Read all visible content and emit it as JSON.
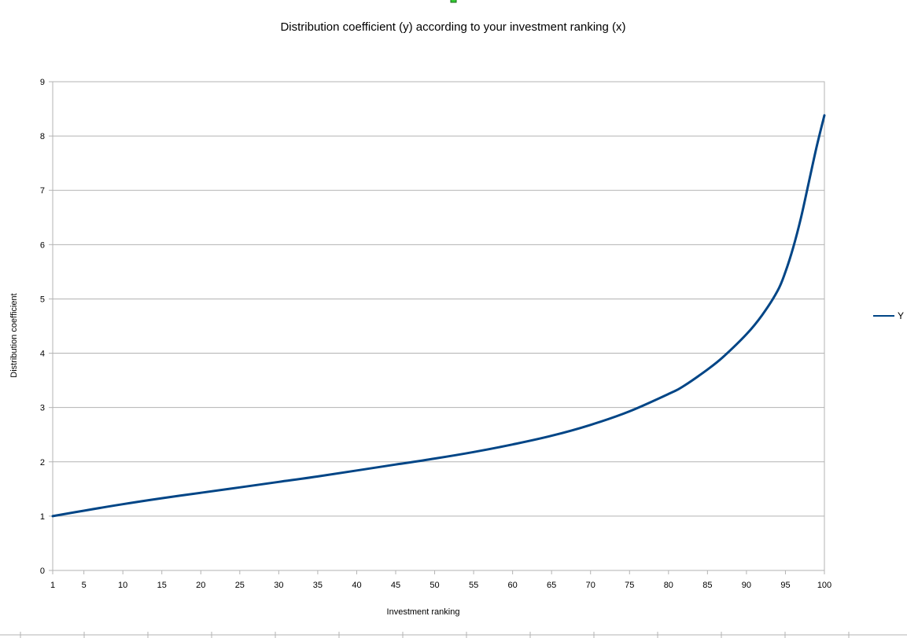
{
  "chart_data": {
    "type": "line",
    "title": "Distribution coefficient (y) according to your investment ranking (x)",
    "xlabel": "Investment ranking",
    "ylabel": "Distribution coefficient",
    "xlim": [
      1,
      100
    ],
    "ylim": [
      0,
      9
    ],
    "x_ticks": [
      1,
      5,
      10,
      15,
      20,
      25,
      30,
      35,
      40,
      45,
      50,
      55,
      60,
      65,
      70,
      75,
      80,
      85,
      90,
      95,
      100
    ],
    "y_ticks": [
      0,
      1,
      2,
      3,
      4,
      5,
      6,
      7,
      8,
      9
    ],
    "grid": "horizontal",
    "legend_position": "right",
    "colors": {
      "series": "#004586",
      "grid": "#b3b3b3"
    },
    "series": [
      {
        "name": "Y",
        "x": [
          1,
          5,
          10,
          15,
          20,
          25,
          30,
          35,
          40,
          45,
          50,
          55,
          60,
          65,
          70,
          75,
          80,
          82,
          85,
          87,
          90,
          92,
          94,
          95,
          96,
          97,
          98,
          99,
          100
        ],
        "values": [
          1.0,
          1.1,
          1.22,
          1.33,
          1.43,
          1.53,
          1.63,
          1.73,
          1.84,
          1.95,
          2.06,
          2.18,
          2.32,
          2.48,
          2.68,
          2.93,
          3.25,
          3.4,
          3.7,
          3.93,
          4.35,
          4.7,
          5.15,
          5.5,
          5.95,
          6.5,
          7.15,
          7.8,
          8.38
        ]
      }
    ]
  }
}
